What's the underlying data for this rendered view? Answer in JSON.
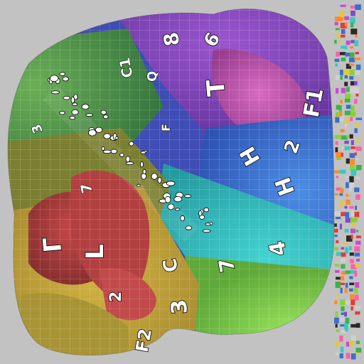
{
  "atlas": {
    "background_color": "#c2c2c2",
    "region_colors": {
      "purple": "#7b3fb8",
      "magenta": "#b04aa8",
      "indigo": "#3f4db5",
      "blue": "#3a6fd0",
      "cyan": "#2fb6c9",
      "teal": "#2e8d86",
      "green": "#4a9a45",
      "lime": "#7fcf4a",
      "olive": "#8a8a2e",
      "yellow": "#c2a83a",
      "orange": "#b9782f",
      "red": "#a83a3a"
    },
    "labels": [
      {
        "text": "F1"
      },
      {
        "text": "2"
      },
      {
        "text": "4"
      },
      {
        "text": "H"
      },
      {
        "text": "T"
      },
      {
        "text": "7"
      },
      {
        "text": "3"
      },
      {
        "text": "C"
      },
      {
        "text": "F2"
      },
      {
        "text": "2"
      },
      {
        "text": "Γ"
      },
      {
        "text": "L"
      },
      {
        "text": "8"
      },
      {
        "text": "6"
      },
      {
        "text": "H"
      },
      {
        "text": "C1"
      },
      {
        "text": "Q"
      },
      {
        "text": "F"
      },
      {
        "text": "7"
      },
      {
        "text": "3"
      }
    ],
    "strip_pattern": "mosaic-strip"
  }
}
